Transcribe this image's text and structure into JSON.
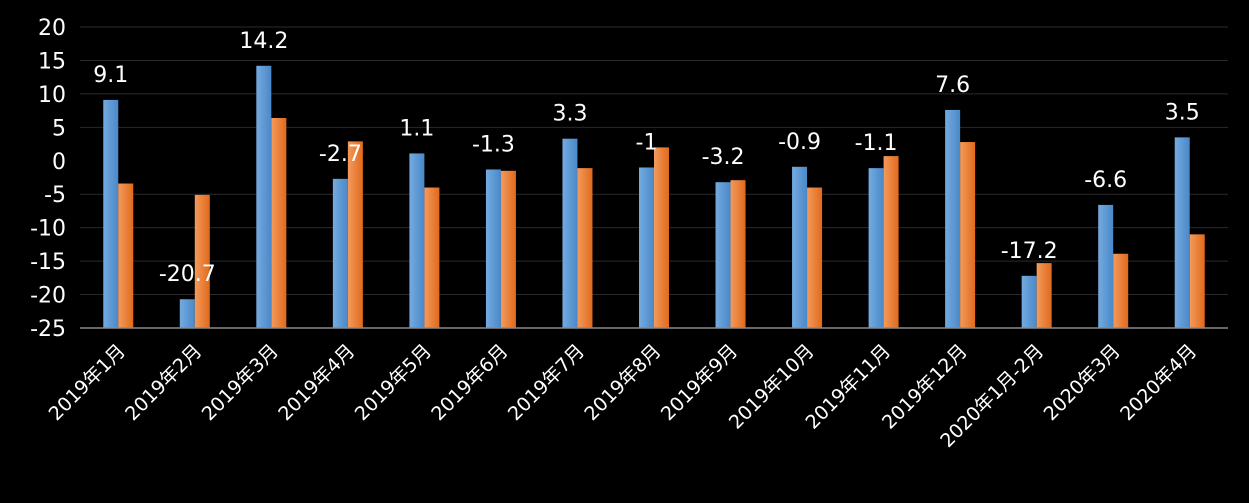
{
  "chart_data": {
    "type": "bar",
    "categories": [
      "2019年1月",
      "2019年2月",
      "2019年3月",
      "2019年4月",
      "2019年5月",
      "2019年6月",
      "2019年7月",
      "2019年8月",
      "2019年9月",
      "2019年10月",
      "2019年11月",
      "2019年12月",
      "2020年1月-2月",
      "2020年3月",
      "2020年4月"
    ],
    "series": [
      {
        "values": [
          9.1,
          -20.7,
          14.2,
          -2.7,
          1.1,
          -1.3,
          3.3,
          -1,
          -3.2,
          -0.9,
          -1.1,
          7.6,
          -17.2,
          -6.6,
          3.5
        ],
        "color": "#5b9bd5",
        "data_labels": true
      },
      {
        "values": [
          -3.4,
          -5.1,
          6.4,
          2.9,
          -4.0,
          -1.5,
          -1.1,
          2.0,
          -2.9,
          -4.0,
          0.7,
          2.8,
          -15.3,
          -13.9,
          -11.0
        ],
        "color": "#ed7d31",
        "data_labels": false
      }
    ],
    "data_labels": [
      "9.1",
      "-20.7",
      "14.2",
      "-2.7",
      "1.1",
      "-1.3",
      "3.3",
      "-1",
      "-3.2",
      "-0.9",
      "-1.1",
      "7.6",
      "-17.2",
      "-6.6",
      "3.5"
    ],
    "yticks": [
      "20",
      "15",
      "10",
      "5",
      "0",
      "-5",
      "-10",
      "-15",
      "-20",
      "-25"
    ],
    "ylim": [
      -25,
      20
    ],
    "grid": true,
    "legend": "none",
    "background": "#000000"
  }
}
